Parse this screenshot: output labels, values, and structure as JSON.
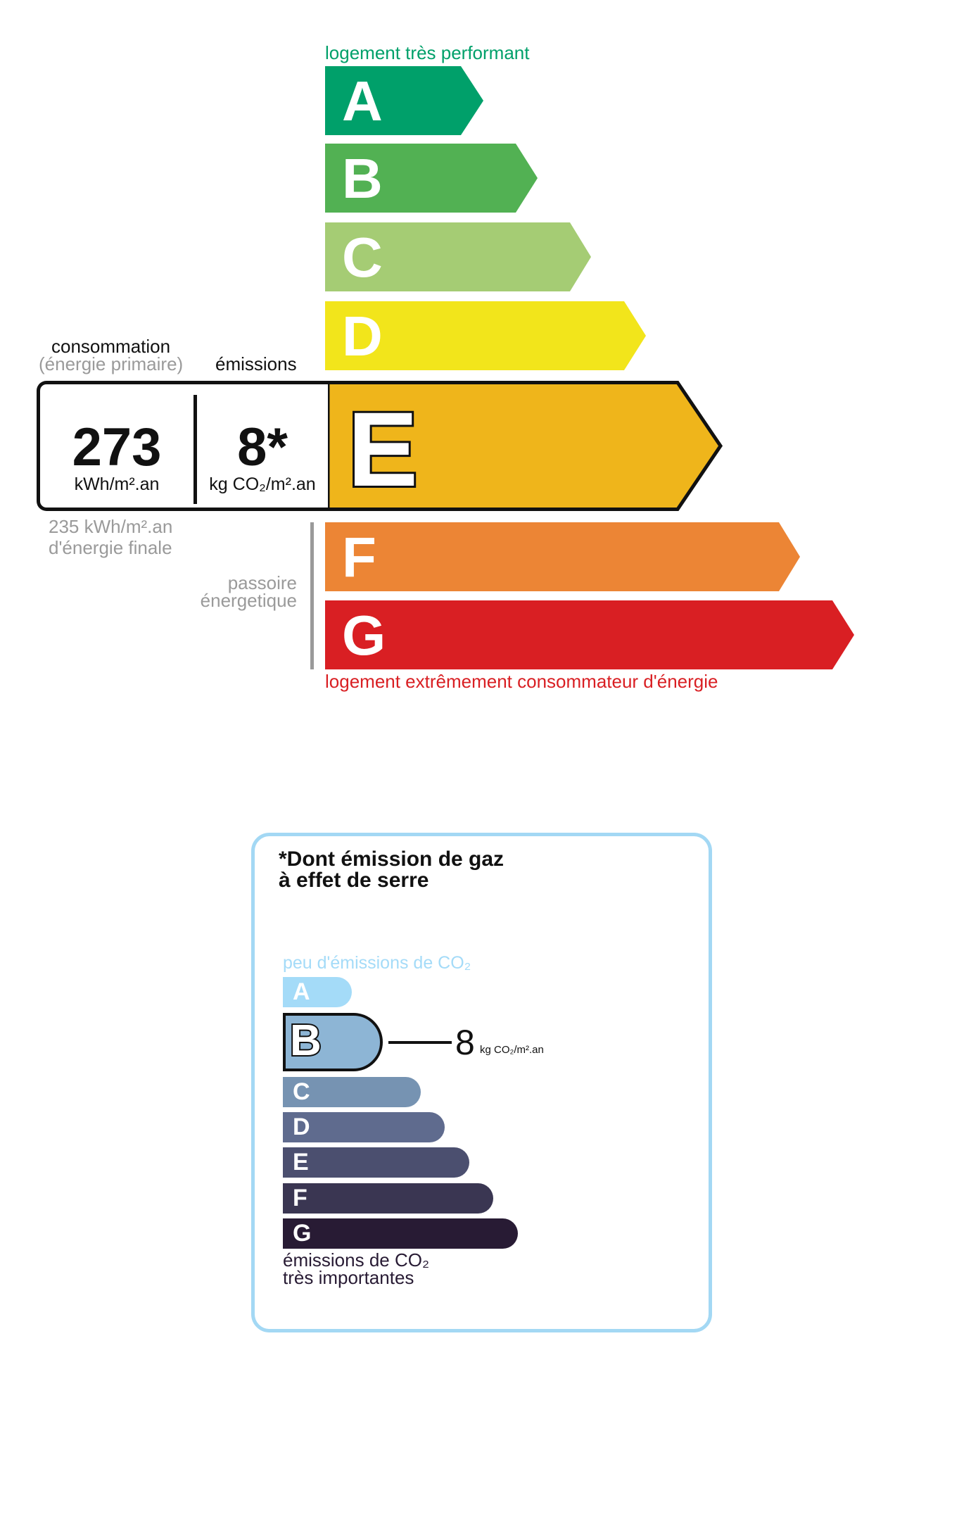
{
  "energy": {
    "top_label": "logement très performant",
    "bottom_label": "logement extrêmement consommateur d'énergie",
    "classes": [
      {
        "letter": "A",
        "color": "#00a06a"
      },
      {
        "letter": "B",
        "color": "#52b153"
      },
      {
        "letter": "C",
        "color": "#a5cc74"
      },
      {
        "letter": "D",
        "color": "#f2e51b"
      },
      {
        "letter": "E",
        "color": "#efb51b"
      },
      {
        "letter": "F",
        "color": "#ec8535"
      },
      {
        "letter": "G",
        "color": "#d91f23"
      }
    ],
    "current_class": "E",
    "consumption_header": "consommation",
    "consumption_sub": "(énergie primaire)",
    "emissions_header": "émissions",
    "consumption_value": "273",
    "consumption_unit": "kWh/m².an",
    "emissions_value": "8*",
    "emissions_unit": "kg CO₂/m².an",
    "final_energy_value": "235 kWh/m².an",
    "final_energy_label": "d'énergie finale",
    "passoire_line1": "passoire",
    "passoire_line2": "énergetique"
  },
  "ges": {
    "title_line1": "*Dont émission de gaz",
    "title_line2": "à effet de serre",
    "top_label": "peu d'émissions de CO₂",
    "bottom_line1": "émissions de CO₂",
    "bottom_line2": "très importantes",
    "classes": [
      {
        "letter": "A",
        "color": "#a4dbf8"
      },
      {
        "letter": "B",
        "color": "#8db5d5"
      },
      {
        "letter": "C",
        "color": "#7693b2"
      },
      {
        "letter": "D",
        "color": "#5f6b8e"
      },
      {
        "letter": "E",
        "color": "#4b4f6f"
      },
      {
        "letter": "F",
        "color": "#3a3652"
      },
      {
        "letter": "G",
        "color": "#281b34"
      }
    ],
    "current_class": "B",
    "value": "8",
    "unit": "kg CO₂/m².an",
    "border_color": "#a3d8f4"
  }
}
